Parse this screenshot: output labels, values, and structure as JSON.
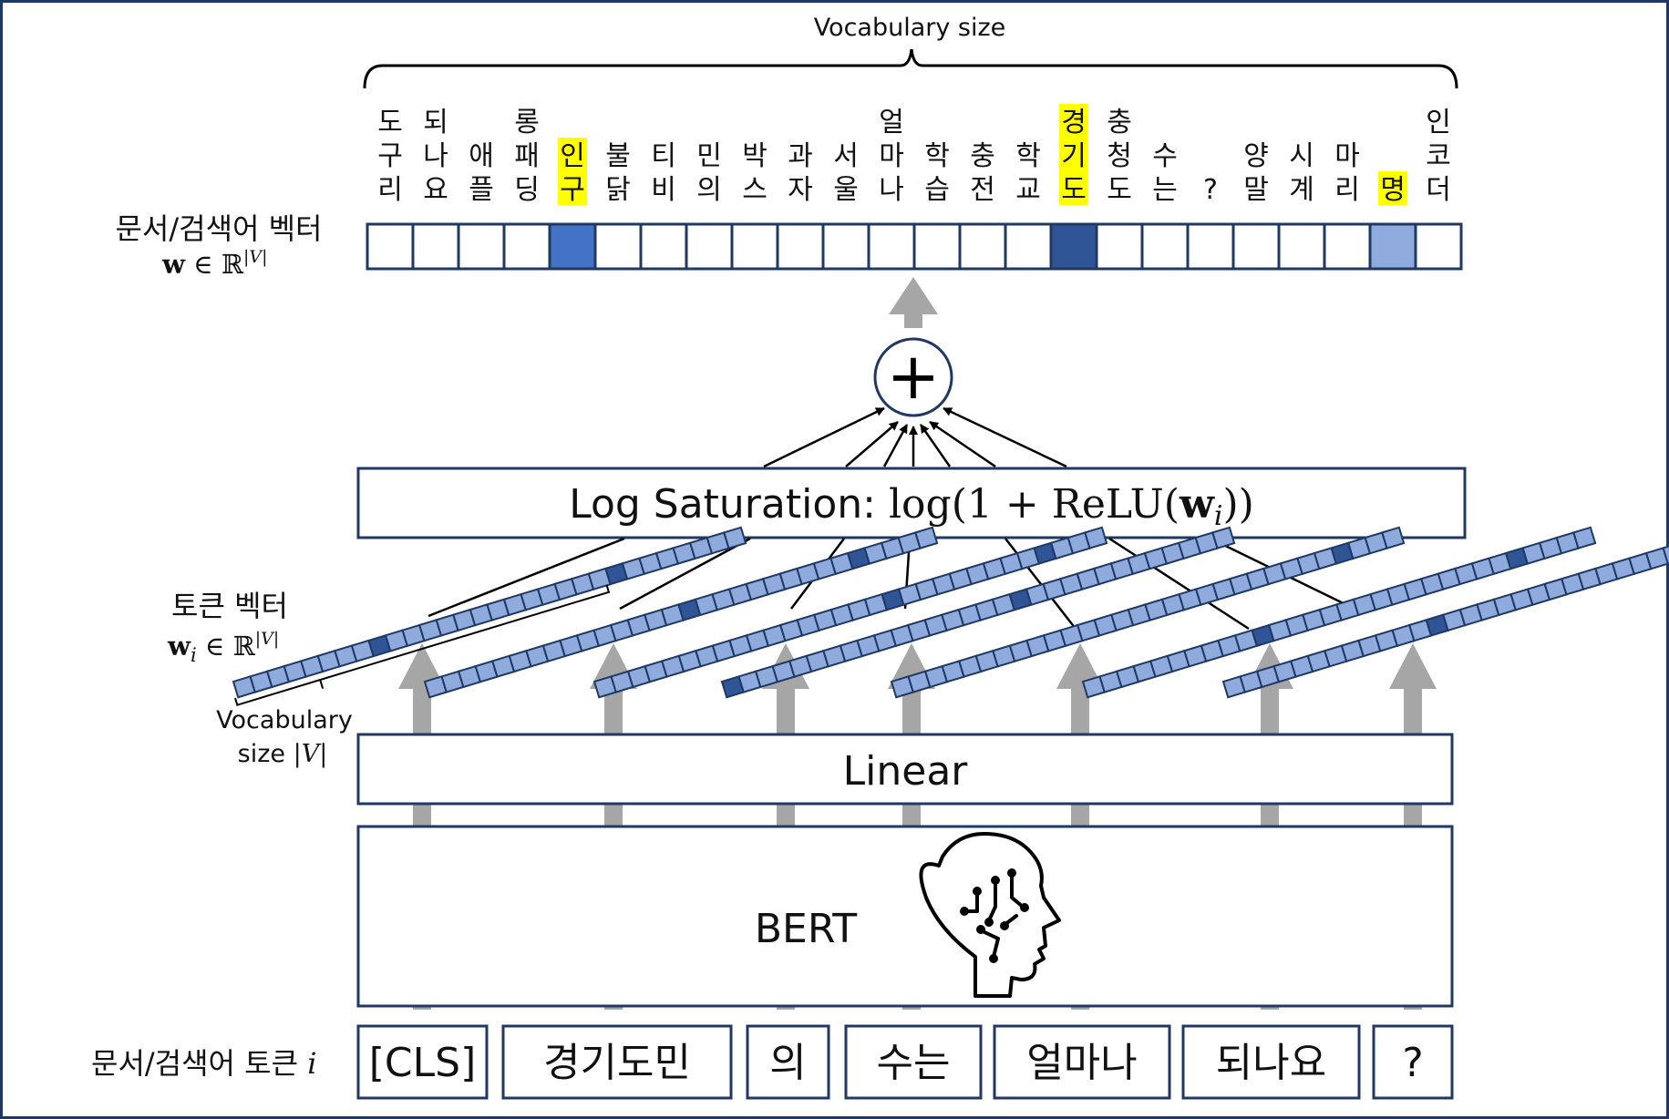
{
  "header": {
    "vocab_size_label": "Vocabulary size"
  },
  "doc_vector": {
    "label": "문서/검색어 벡터",
    "formula_bold": "w",
    "formula_rest": " ∈ ℝ",
    "formula_sup": "|V|"
  },
  "vocab_words": [
    {
      "chars": [
        "도",
        "구",
        "리"
      ],
      "highlight": false,
      "weight": 0
    },
    {
      "chars": [
        "되",
        "나",
        "요"
      ],
      "highlight": false,
      "weight": 0
    },
    {
      "chars": [
        "애",
        "플"
      ],
      "highlight": false,
      "weight": 0
    },
    {
      "chars": [
        "롱",
        "패",
        "딩"
      ],
      "highlight": false,
      "weight": 0
    },
    {
      "chars": [
        "인",
        "구"
      ],
      "highlight": true,
      "weight": 2
    },
    {
      "chars": [
        "불",
        "닭"
      ],
      "highlight": false,
      "weight": 0
    },
    {
      "chars": [
        "티",
        "비"
      ],
      "highlight": false,
      "weight": 0
    },
    {
      "chars": [
        "민",
        "의"
      ],
      "highlight": false,
      "weight": 0
    },
    {
      "chars": [
        "박",
        "스"
      ],
      "highlight": false,
      "weight": 0
    },
    {
      "chars": [
        "과",
        "자"
      ],
      "highlight": false,
      "weight": 0
    },
    {
      "chars": [
        "서",
        "울"
      ],
      "highlight": false,
      "weight": 0
    },
    {
      "chars": [
        "얼",
        "마",
        "나"
      ],
      "highlight": false,
      "weight": 0
    },
    {
      "chars": [
        "학",
        "습"
      ],
      "highlight": false,
      "weight": 0
    },
    {
      "chars": [
        "충",
        "전"
      ],
      "highlight": false,
      "weight": 0
    },
    {
      "chars": [
        "학",
        "교"
      ],
      "highlight": false,
      "weight": 0
    },
    {
      "chars": [
        "경",
        "기",
        "도"
      ],
      "highlight": true,
      "weight": 3
    },
    {
      "chars": [
        "충",
        "청",
        "도"
      ],
      "highlight": false,
      "weight": 0
    },
    {
      "chars": [
        "수",
        "는"
      ],
      "highlight": false,
      "weight": 0
    },
    {
      "chars": [
        "?"
      ],
      "highlight": false,
      "weight": 0
    },
    {
      "chars": [
        "양",
        "말"
      ],
      "highlight": false,
      "weight": 0
    },
    {
      "chars": [
        "시",
        "계"
      ],
      "highlight": false,
      "weight": 0
    },
    {
      "chars": [
        "마",
        "리"
      ],
      "highlight": false,
      "weight": 0
    },
    {
      "chars": [
        "명"
      ],
      "highlight": true,
      "weight": 1
    },
    {
      "chars": [
        "인",
        "코",
        "더"
      ],
      "highlight": false,
      "weight": 0
    }
  ],
  "sum_symbol": "+",
  "log_saturation": {
    "text": "Log Saturation: ",
    "formula_a": "log(1 + ReLU(",
    "formula_w": "w",
    "formula_i": "i",
    "formula_b": "))"
  },
  "token_vector": {
    "label": "토큰 벡터",
    "formula_bold": "w",
    "formula_sub": "i",
    "formula_rest": " ∈ ℝ",
    "formula_sup": "|V|",
    "vocab_label_line1": "Vocabulary",
    "vocab_label_line2": "size ",
    "vocab_label_var": "|V|"
  },
  "linear_label": "Linear",
  "bert_label": "BERT",
  "input_label": {
    "text": "문서/검색어 토큰 ",
    "var": "i"
  },
  "tokens": [
    "[CLS]",
    "경기도민",
    "의",
    "수는",
    "얼마나",
    "되나요",
    "?"
  ],
  "colors": {
    "border": "#1f3864",
    "light_cell": "#8faadc",
    "mid_cell": "#4472c4",
    "dark_cell": "#2f5597",
    "highlight": "#ffff00",
    "arrow": "#a6a6a6"
  }
}
